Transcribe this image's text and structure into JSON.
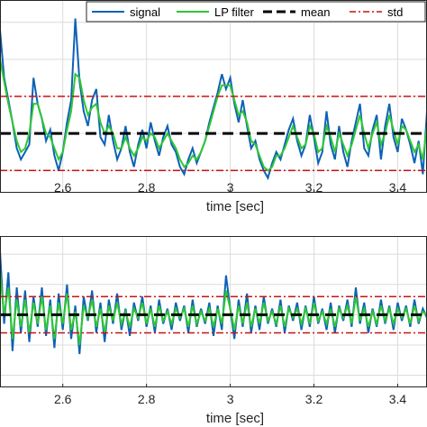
{
  "chart_data": [
    {
      "type": "line",
      "title": "",
      "xlabel": "time [sec]",
      "ylabel": "",
      "xlim": [
        2.45,
        3.47
      ],
      "ylim": [
        -1.6,
        3.6
      ],
      "xticks": [
        2.6,
        2.8,
        3.0,
        3.2,
        3.4
      ],
      "xtick_labels": [
        "2.6",
        "2.8",
        "3",
        "3.2",
        "3.4"
      ],
      "grid": true,
      "legend": "top-right",
      "mean": 0,
      "std": 1,
      "series": [
        {
          "name": "signal",
          "color": "#0d62b5"
        },
        {
          "name": "LP filter",
          "color": "#2ec832"
        },
        {
          "name": "mean",
          "color": "#000000"
        },
        {
          "name": "std",
          "color": "#cc1111"
        }
      ],
      "t": [
        2.45,
        2.46,
        2.47,
        2.48,
        2.49,
        2.5,
        2.51,
        2.52,
        2.53,
        2.54,
        2.55,
        2.56,
        2.57,
        2.58,
        2.59,
        2.6,
        2.61,
        2.62,
        2.63,
        2.64,
        2.65,
        2.66,
        2.67,
        2.68,
        2.69,
        2.7,
        2.71,
        2.72,
        2.73,
        2.74,
        2.75,
        2.76,
        2.77,
        2.78,
        2.79,
        2.8,
        2.81,
        2.82,
        2.83,
        2.84,
        2.85,
        2.86,
        2.87,
        2.88,
        2.89,
        2.9,
        2.91,
        2.92,
        2.93,
        2.94,
        2.95,
        2.96,
        2.97,
        2.98,
        2.99,
        3.0,
        3.01,
        3.02,
        3.03,
        3.04,
        3.05,
        3.06,
        3.07,
        3.08,
        3.09,
        3.1,
        3.11,
        3.12,
        3.13,
        3.14,
        3.15,
        3.16,
        3.17,
        3.18,
        3.19,
        3.2,
        3.21,
        3.22,
        3.23,
        3.24,
        3.25,
        3.26,
        3.27,
        3.28,
        3.29,
        3.3,
        3.31,
        3.32,
        3.33,
        3.34,
        3.35,
        3.36,
        3.37,
        3.38,
        3.39,
        3.4,
        3.41,
        3.42,
        3.43,
        3.44,
        3.45,
        3.46,
        3.47
      ],
      "signal": [
        2.8,
        1.5,
        0.9,
        0.3,
        -0.4,
        -0.7,
        -0.5,
        -0.3,
        1.5,
        0.8,
        0.4,
        -0.2,
        0.1,
        -0.6,
        -1.0,
        -0.5,
        0.3,
        0.9,
        3.1,
        1.4,
        0.6,
        0.2,
        0.9,
        1.2,
        -0.1,
        -0.3,
        0.5,
        -0.2,
        -0.7,
        -0.4,
        0.2,
        -0.5,
        -0.9,
        -0.3,
        0.1,
        -0.4,
        0.3,
        -0.2,
        -0.6,
        -0.1,
        0.2,
        -0.3,
        -0.5,
        -0.9,
        -1.1,
        -0.7,
        -0.4,
        -0.8,
        -0.5,
        -0.2,
        0.3,
        0.7,
        1.1,
        1.6,
        1.2,
        1.5,
        0.8,
        0.3,
        0.9,
        0.2,
        -0.4,
        -0.2,
        -0.7,
        -1.0,
        -1.2,
        -0.8,
        -0.5,
        -0.7,
        -0.3,
        0.1,
        0.4,
        -0.2,
        -0.6,
        -0.3,
        0.5,
        -0.1,
        -0.8,
        -0.5,
        0.6,
        -0.3,
        -0.7,
        0.2,
        -0.5,
        -0.9,
        -0.2,
        0.3,
        0.8,
        -0.4,
        -0.6,
        0.1,
        0.5,
        -0.7,
        0.2,
        0.8,
        -0.1,
        -0.5,
        0.4,
        0.1,
        -0.3,
        -0.8,
        -0.2,
        -1.1,
        0.6
      ],
      "lp": [
        2.0,
        1.4,
        0.8,
        0.3,
        -0.2,
        -0.5,
        -0.4,
        0.0,
        0.8,
        0.8,
        0.4,
        0.0,
        -0.1,
        -0.4,
        -0.7,
        -0.5,
        0.1,
        0.6,
        1.6,
        1.5,
        0.9,
        0.5,
        0.7,
        0.8,
        0.3,
        0.0,
        0.2,
        0.0,
        -0.4,
        -0.4,
        -0.1,
        -0.4,
        -0.6,
        -0.4,
        -0.1,
        -0.2,
        0.0,
        -0.1,
        -0.4,
        -0.2,
        0.0,
        -0.2,
        -0.4,
        -0.7,
        -0.9,
        -0.8,
        -0.6,
        -0.7,
        -0.5,
        -0.2,
        0.2,
        0.6,
        1.0,
        1.3,
        1.3,
        1.3,
        0.9,
        0.5,
        0.6,
        0.3,
        -0.2,
        -0.3,
        -0.6,
        -0.9,
        -1.0,
        -0.9,
        -0.6,
        -0.6,
        -0.4,
        -0.1,
        0.2,
        -0.1,
        -0.4,
        -0.3,
        0.2,
        0.0,
        -0.5,
        -0.4,
        0.2,
        -0.1,
        -0.5,
        0.0,
        -0.3,
        -0.6,
        -0.3,
        0.1,
        0.5,
        0.0,
        -0.4,
        0.0,
        0.3,
        -0.3,
        0.0,
        0.5,
        0.1,
        -0.3,
        0.2,
        0.1,
        -0.2,
        -0.5,
        -0.3,
        -0.7,
        0.2
      ]
    },
    {
      "type": "line",
      "title": "",
      "xlabel": "time [sec]",
      "ylabel": "",
      "xlim": [
        2.45,
        3.47
      ],
      "ylim": [
        -2.4,
        2.6
      ],
      "xticks": [
        2.6,
        2.8,
        3.0,
        3.2,
        3.4
      ],
      "xtick_labels": [
        "2.6",
        "2.8",
        "3",
        "3.2",
        "3.4"
      ],
      "grid": true,
      "mean": 0,
      "std": 0.6,
      "t": [
        2.45,
        2.46,
        2.47,
        2.48,
        2.49,
        2.5,
        2.51,
        2.52,
        2.53,
        2.54,
        2.55,
        2.56,
        2.57,
        2.58,
        2.59,
        2.6,
        2.61,
        2.62,
        2.63,
        2.64,
        2.65,
        2.66,
        2.67,
        2.68,
        2.69,
        2.7,
        2.71,
        2.72,
        2.73,
        2.74,
        2.75,
        2.76,
        2.77,
        2.78,
        2.79,
        2.8,
        2.81,
        2.82,
        2.83,
        2.84,
        2.85,
        2.86,
        2.87,
        2.88,
        2.89,
        2.9,
        2.91,
        2.92,
        2.93,
        2.94,
        2.95,
        2.96,
        2.97,
        2.98,
        2.99,
        3.0,
        3.01,
        3.02,
        3.03,
        3.04,
        3.05,
        3.06,
        3.07,
        3.08,
        3.09,
        3.1,
        3.11,
        3.12,
        3.13,
        3.14,
        3.15,
        3.16,
        3.17,
        3.18,
        3.19,
        3.2,
        3.21,
        3.22,
        3.23,
        3.24,
        3.25,
        3.26,
        3.27,
        3.28,
        3.29,
        3.3,
        3.31,
        3.32,
        3.33,
        3.34,
        3.35,
        3.36,
        3.37,
        3.38,
        3.39,
        3.4,
        3.41,
        3.42,
        3.43,
        3.44,
        3.45,
        3.46,
        3.47
      ],
      "signal": [
        2.1,
        -0.3,
        1.4,
        -1.2,
        0.9,
        -0.6,
        0.8,
        -0.9,
        0.6,
        -0.4,
        0.9,
        -0.7,
        0.5,
        -1.1,
        0.7,
        -0.5,
        1.0,
        -0.8,
        0.3,
        -1.3,
        0.6,
        -0.2,
        0.8,
        -0.6,
        0.4,
        -0.9,
        0.5,
        -0.3,
        0.7,
        -0.5,
        0.2,
        -0.7,
        0.4,
        -0.2,
        0.6,
        -0.4,
        0.3,
        -0.6,
        0.5,
        -0.3,
        0.2,
        -0.5,
        0.4,
        -0.2,
        0.3,
        -0.6,
        0.5,
        -0.4,
        0.2,
        -0.3,
        0.4,
        -0.7,
        0.3,
        -0.5,
        1.3,
        0.2,
        -0.8,
        0.5,
        -0.4,
        0.7,
        -0.6,
        0.3,
        -0.5,
        0.6,
        -0.3,
        0.2,
        -0.4,
        0.5,
        -0.6,
        0.3,
        -0.2,
        0.4,
        -0.5,
        0.3,
        -0.4,
        0.6,
        -0.3,
        0.2,
        -0.5,
        0.4,
        -0.6,
        0.3,
        -0.2,
        0.5,
        -0.4,
        0.9,
        -0.3,
        0.4,
        -0.6,
        0.2,
        -0.4,
        0.5,
        -0.3,
        0.3,
        -0.5,
        0.4,
        -0.2,
        0.3,
        -0.4,
        0.5,
        -0.3,
        0.2,
        -0.1
      ],
      "lp": [
        1.4,
        0.0,
        0.9,
        -0.8,
        0.5,
        -0.4,
        0.5,
        -0.6,
        0.4,
        -0.3,
        0.6,
        -0.5,
        0.3,
        -0.8,
        0.4,
        -0.3,
        0.7,
        -0.5,
        0.1,
        -1.0,
        0.3,
        -0.1,
        0.5,
        -0.4,
        0.2,
        -0.6,
        0.3,
        -0.2,
        0.4,
        -0.3,
        0.1,
        -0.4,
        0.2,
        -0.1,
        0.4,
        -0.3,
        0.2,
        -0.4,
        0.3,
        -0.2,
        0.1,
        -0.3,
        0.2,
        -0.1,
        0.2,
        -0.4,
        0.3,
        -0.3,
        0.1,
        -0.2,
        0.2,
        -0.4,
        0.2,
        -0.3,
        0.8,
        0.2,
        -0.5,
        0.3,
        -0.3,
        0.4,
        -0.4,
        0.2,
        -0.3,
        0.4,
        -0.2,
        0.1,
        -0.3,
        0.3,
        -0.4,
        0.2,
        -0.1,
        0.2,
        -0.3,
        0.2,
        -0.3,
        0.4,
        -0.2,
        0.1,
        -0.3,
        0.2,
        -0.4,
        0.2,
        -0.1,
        0.3,
        -0.3,
        0.6,
        -0.2,
        0.2,
        -0.4,
        0.1,
        -0.3,
        0.3,
        -0.2,
        0.2,
        -0.3,
        0.2,
        -0.1,
        0.2,
        -0.3,
        0.3,
        -0.2,
        0.1,
        0.0
      ]
    }
  ]
}
